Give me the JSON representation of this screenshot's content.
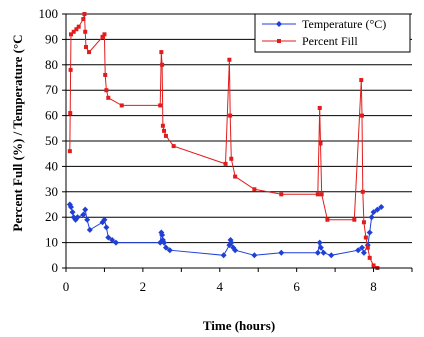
{
  "chart_data": {
    "type": "line",
    "title": "",
    "xlabel": "Time (hours)",
    "ylabel": "Percent Full (%) / Temperature (°C",
    "xlim": [
      0,
      9
    ],
    "ylim": [
      0,
      100
    ],
    "xticks": [
      0,
      2,
      4,
      6,
      8
    ],
    "yticks": [
      0,
      10,
      20,
      30,
      40,
      50,
      60,
      70,
      80,
      90,
      100
    ],
    "grid": "horizontal",
    "legend_position": "top-right",
    "series": [
      {
        "name": "Temperature (°C)",
        "color": "#1f3fd8",
        "marker": "diamond",
        "points": [
          [
            0.1,
            25
          ],
          [
            0.13,
            24
          ],
          [
            0.17,
            22
          ],
          [
            0.2,
            20
          ],
          [
            0.25,
            19
          ],
          [
            0.3,
            20
          ],
          [
            0.45,
            21
          ],
          [
            0.5,
            23
          ],
          [
            0.55,
            19
          ],
          [
            0.62,
            15
          ],
          [
            0.95,
            18
          ],
          [
            1.0,
            19
          ],
          [
            1.05,
            16
          ],
          [
            1.1,
            12
          ],
          [
            1.2,
            11
          ],
          [
            1.3,
            10
          ],
          [
            2.45,
            10
          ],
          [
            2.48,
            14
          ],
          [
            2.5,
            13
          ],
          [
            2.52,
            11
          ],
          [
            2.55,
            10
          ],
          [
            2.6,
            8
          ],
          [
            2.7,
            7
          ],
          [
            4.1,
            5
          ],
          [
            4.25,
            9
          ],
          [
            4.28,
            11
          ],
          [
            4.3,
            10
          ],
          [
            4.35,
            8
          ],
          [
            4.4,
            7
          ],
          [
            4.9,
            5
          ],
          [
            5.6,
            6
          ],
          [
            6.55,
            6
          ],
          [
            6.6,
            10
          ],
          [
            6.63,
            8
          ],
          [
            6.7,
            6
          ],
          [
            6.9,
            5
          ],
          [
            7.6,
            7
          ],
          [
            7.7,
            8
          ],
          [
            7.75,
            6
          ],
          [
            7.85,
            9
          ],
          [
            7.9,
            14
          ],
          [
            7.95,
            20
          ],
          [
            8.0,
            22
          ],
          [
            8.1,
            23
          ],
          [
            8.2,
            24
          ]
        ]
      },
      {
        "name": "Percent Fill",
        "color": "#e21c1c",
        "marker": "square",
        "points": [
          [
            0.1,
            46
          ],
          [
            0.11,
            61
          ],
          [
            0.12,
            78
          ],
          [
            0.13,
            92
          ],
          [
            0.2,
            93
          ],
          [
            0.27,
            94
          ],
          [
            0.33,
            95
          ],
          [
            0.45,
            98
          ],
          [
            0.48,
            100
          ],
          [
            0.5,
            93
          ],
          [
            0.52,
            87
          ],
          [
            0.6,
            85
          ],
          [
            0.95,
            91
          ],
          [
            1.0,
            92
          ],
          [
            1.02,
            76
          ],
          [
            1.05,
            70
          ],
          [
            1.1,
            67
          ],
          [
            1.45,
            64
          ],
          [
            2.45,
            64
          ],
          [
            2.48,
            85
          ],
          [
            2.5,
            80
          ],
          [
            2.52,
            56
          ],
          [
            2.55,
            54
          ],
          [
            2.6,
            52
          ],
          [
            2.8,
            48
          ],
          [
            4.15,
            41
          ],
          [
            4.25,
            82
          ],
          [
            4.27,
            60
          ],
          [
            4.3,
            43
          ],
          [
            4.4,
            36
          ],
          [
            4.9,
            31
          ],
          [
            5.6,
            29
          ],
          [
            6.55,
            29
          ],
          [
            6.6,
            63
          ],
          [
            6.62,
            49
          ],
          [
            6.65,
            29
          ],
          [
            6.8,
            19
          ],
          [
            7.5,
            19
          ],
          [
            7.68,
            74
          ],
          [
            7.7,
            60
          ],
          [
            7.72,
            30
          ],
          [
            7.75,
            18
          ],
          [
            7.8,
            12
          ],
          [
            7.85,
            8
          ],
          [
            7.9,
            4
          ],
          [
            8.0,
            1
          ],
          [
            8.1,
            0
          ]
        ]
      }
    ]
  }
}
